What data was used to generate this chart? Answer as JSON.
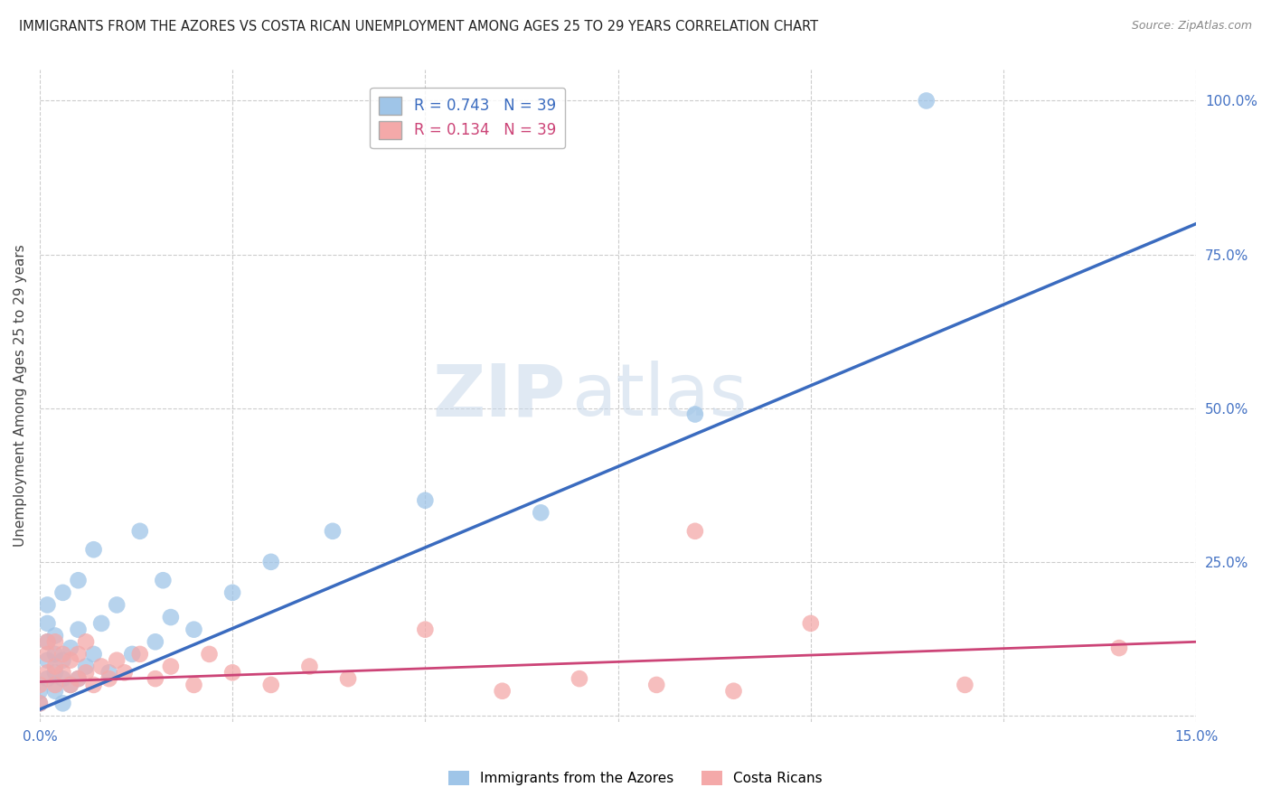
{
  "title": "IMMIGRANTS FROM THE AZORES VS COSTA RICAN UNEMPLOYMENT AMONG AGES 25 TO 29 YEARS CORRELATION CHART",
  "source": "Source: ZipAtlas.com",
  "ylabel": "Unemployment Among Ages 25 to 29 years",
  "xlim": [
    0.0,
    0.15
  ],
  "ylim": [
    -0.01,
    1.05
  ],
  "xticks": [
    0.0,
    0.025,
    0.05,
    0.075,
    0.1,
    0.125,
    0.15
  ],
  "yticks_right": [
    0.0,
    0.25,
    0.5,
    0.75,
    1.0
  ],
  "yticklabels_right": [
    "",
    "25.0%",
    "50.0%",
    "75.0%",
    "100.0%"
  ],
  "legend_azores": "R = 0.743   N = 39",
  "legend_costa": "R = 0.134   N = 39",
  "azores_color": "#9fc5e8",
  "costa_color": "#f4a9a9",
  "azores_line_color": "#3a6bbf",
  "costa_line_color": "#cc4477",
  "watermark_zip": "ZIP",
  "watermark_atlas": "atlas",
  "azores_x": [
    0.0,
    0.0,
    0.001,
    0.001,
    0.001,
    0.001,
    0.001,
    0.002,
    0.002,
    0.002,
    0.002,
    0.003,
    0.003,
    0.003,
    0.003,
    0.004,
    0.004,
    0.005,
    0.005,
    0.005,
    0.006,
    0.007,
    0.007,
    0.008,
    0.009,
    0.01,
    0.012,
    0.013,
    0.015,
    0.016,
    0.017,
    0.02,
    0.025,
    0.03,
    0.038,
    0.05,
    0.065,
    0.085,
    0.115
  ],
  "azores_y": [
    0.02,
    0.04,
    0.06,
    0.09,
    0.12,
    0.15,
    0.18,
    0.04,
    0.07,
    0.1,
    0.13,
    0.02,
    0.06,
    0.09,
    0.2,
    0.05,
    0.11,
    0.06,
    0.14,
    0.22,
    0.08,
    0.1,
    0.27,
    0.15,
    0.07,
    0.18,
    0.1,
    0.3,
    0.12,
    0.22,
    0.16,
    0.14,
    0.2,
    0.25,
    0.3,
    0.35,
    0.33,
    0.49,
    1.0
  ],
  "costa_x": [
    0.0,
    0.0,
    0.001,
    0.001,
    0.001,
    0.002,
    0.002,
    0.002,
    0.003,
    0.003,
    0.004,
    0.004,
    0.005,
    0.005,
    0.006,
    0.006,
    0.007,
    0.008,
    0.009,
    0.01,
    0.011,
    0.013,
    0.015,
    0.017,
    0.02,
    0.022,
    0.025,
    0.03,
    0.035,
    0.04,
    0.05,
    0.06,
    0.07,
    0.08,
    0.085,
    0.09,
    0.1,
    0.12,
    0.14
  ],
  "costa_y": [
    0.02,
    0.05,
    0.07,
    0.1,
    0.12,
    0.05,
    0.08,
    0.12,
    0.07,
    0.1,
    0.05,
    0.09,
    0.06,
    0.1,
    0.07,
    0.12,
    0.05,
    0.08,
    0.06,
    0.09,
    0.07,
    0.1,
    0.06,
    0.08,
    0.05,
    0.1,
    0.07,
    0.05,
    0.08,
    0.06,
    0.14,
    0.04,
    0.06,
    0.05,
    0.3,
    0.04,
    0.15,
    0.05,
    0.11
  ]
}
